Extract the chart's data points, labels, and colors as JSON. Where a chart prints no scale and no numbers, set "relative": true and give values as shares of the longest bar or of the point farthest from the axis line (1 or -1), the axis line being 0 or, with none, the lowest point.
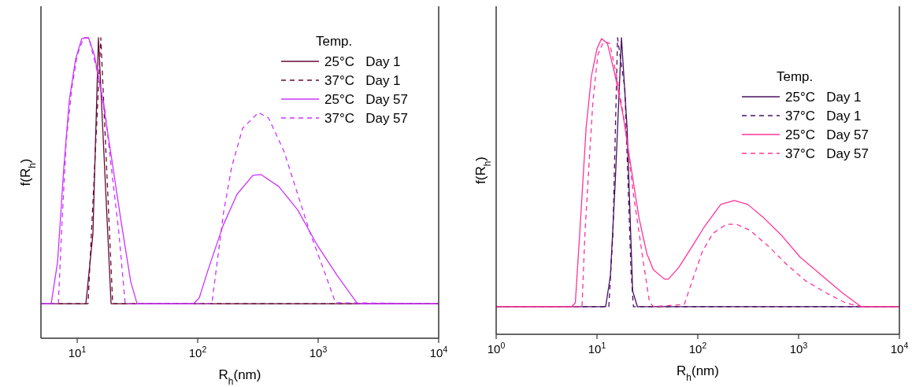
{
  "chart_data": [
    {
      "type": "line",
      "relative": true,
      "log": "x",
      "xlabel": "R$_{h}$(nm)",
      "ylabel": "f(R$_{h}$)",
      "legend_title": "Temp.",
      "legend": "top right",
      "xlim": [
        5,
        10000
      ],
      "xticks": [
        {
          "value": 10,
          "label": "10$^{1}$"
        },
        {
          "value": 100,
          "label": "10$^{2}$"
        },
        {
          "value": 1000,
          "label": "10$^{3}$"
        },
        {
          "value": 10000,
          "label": "10$^{4}$"
        }
      ],
      "series": [
        {
          "name": "25°C   Day 1",
          "color": "#660a36",
          "line_style": "solid",
          "x": [
            5,
            11.8,
            13.5,
            15.0,
            19.1,
            10000
          ],
          "values": [
            0.115,
            0.115,
            0.348,
            1,
            0.115,
            0.115
          ]
        },
        {
          "name": "37°C   Day 1",
          "color": "#660a36",
          "line_style": "dashed",
          "x": [
            5,
            12.3,
            15.7,
            19.7,
            10000
          ],
          "values": [
            0.115,
            0.115,
            1,
            0.115,
            0.115
          ]
        },
        {
          "name": "25°C   Day 57",
          "color": "#cc33ff",
          "line_style": "solid",
          "x": [
            5,
            6.08,
            6.87,
            7.74,
            8.6,
            9.7,
            10.9,
            12.4,
            13.9,
            16.4,
            19.1,
            23.2,
            27.8,
            31.4,
            92.7,
            103,
            122,
            162,
            212,
            287,
            334,
            471,
            676,
            985,
            1435,
            2120,
            10000
          ],
          "values": [
            0.115,
            0.115,
            0.254,
            0.568,
            0.793,
            0.929,
            0.997,
            1,
            0.942,
            0.785,
            0.61,
            0.385,
            0.188,
            0.115,
            0.115,
            0.134,
            0.228,
            0.374,
            0.479,
            0.542,
            0.545,
            0.505,
            0.427,
            0.309,
            0.209,
            0.115,
            0.115
          ]
        },
        {
          "name": "37°C   Day 57",
          "color": "#cc33ff",
          "line_style": "dashed",
          "x": [
            5,
            6.97,
            7.4,
            8.1,
            9.0,
            10,
            11.3,
            12.5,
            14.6,
            16.9,
            19.1,
            22.2,
            25.0,
            131,
            146,
            164,
            191,
            236,
            319,
            387,
            523,
            676,
            861,
            1111,
            1393,
            10000
          ],
          "values": [
            0.115,
            0.115,
            0.348,
            0.654,
            0.83,
            0.942,
            1,
            1,
            0.89,
            0.767,
            0.576,
            0.348,
            0.115,
            0.115,
            0.262,
            0.419,
            0.568,
            0.699,
            0.751,
            0.733,
            0.62,
            0.479,
            0.348,
            0.228,
            0.118,
            0.115
          ]
        }
      ]
    },
    {
      "type": "line",
      "relative": true,
      "log": "x",
      "xlabel": "R$_{h}$(nm)",
      "ylabel": "f(R$_{h}$)",
      "legend_title": "Temp.",
      "legend": "top right",
      "xlim": [
        1,
        10000
      ],
      "xticks": [
        {
          "value": 1,
          "label": "10$^{0}$"
        },
        {
          "value": 10,
          "label": "10$^{1}$"
        },
        {
          "value": 100,
          "label": "10$^{2}$"
        },
        {
          "value": 1000,
          "label": "10$^{3}$"
        },
        {
          "value": 10000,
          "label": "10$^{4}$"
        }
      ],
      "series": [
        {
          "name": "25°C   Day 1",
          "color": "#4a1060",
          "line_style": "solid",
          "x": [
            1,
            12.2,
            13.6,
            15.2,
            17.5,
            19.9,
            22.6,
            25.2,
            10000
          ],
          "values": [
            0.093,
            0.093,
            0.199,
            0.517,
            1,
            0.695,
            0.146,
            0.093,
            0.093
          ]
        },
        {
          "name": "37°C   Day 1",
          "color": "#4a1060",
          "line_style": "dashed",
          "x": [
            1,
            13.1,
            14.4,
            16.0,
            18.9,
            21.8,
            23.0,
            10000
          ],
          "values": [
            0.093,
            0.093,
            0.34,
            1,
            0.828,
            0.207,
            0.093,
            0.093
          ]
        },
        {
          "name": "25°C   Day 57",
          "color": "#ff3399",
          "line_style": "solid",
          "x": [
            1,
            5.6,
            6.1,
            7.0,
            7.8,
            8.8,
            10,
            11.1,
            12.7,
            15.2,
            18.2,
            21.8,
            26.1,
            31.3,
            36.2,
            46.7,
            51.1,
            64.7,
            88.1,
            118,
            169,
            230,
            313,
            450,
            684,
            1037,
            1692,
            2760,
            4190,
            10000
          ],
          "values": [
            0.093,
            0.093,
            0.106,
            0.43,
            0.695,
            0.87,
            0.963,
            0.997,
            0.981,
            0.87,
            0.737,
            0.562,
            0.393,
            0.271,
            0.218,
            0.186,
            0.186,
            0.225,
            0.297,
            0.366,
            0.438,
            0.451,
            0.438,
            0.393,
            0.332,
            0.26,
            0.199,
            0.138,
            0.093,
            0.093
          ]
        },
        {
          "name": "37°C   Day 57",
          "color": "#ff3399",
          "line_style": "dashed",
          "x": [
            1,
            7.1,
            7.6,
            8.3,
            9.1,
            10.2,
            11.6,
            13.4,
            16.0,
            19.2,
            23.0,
            28.6,
            33.1,
            36.2,
            73.5,
            88.1,
            111,
            141,
            192,
            243,
            331,
            502,
            776,
            1178,
            1920,
            2915,
            4190,
            10000
          ],
          "values": [
            0.093,
            0.093,
            0.34,
            0.562,
            0.782,
            0.942,
            0.987,
            0.981,
            0.854,
            0.695,
            0.472,
            0.252,
            0.111,
            0.093,
            0.101,
            0.18,
            0.279,
            0.34,
            0.371,
            0.371,
            0.35,
            0.297,
            0.233,
            0.18,
            0.138,
            0.106,
            0.093,
            0.093
          ]
        }
      ]
    }
  ]
}
